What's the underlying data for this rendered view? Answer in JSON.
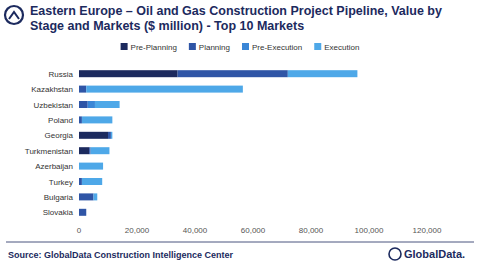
{
  "chart_data": {
    "type": "bar",
    "orientation": "horizontal",
    "stacked": true,
    "grid": false,
    "legend": "top",
    "title": "Eastern Europe – Oil and Gas Construction Project Pipeline, Value by Stage and Markets ($ million) - Top 10 Markets",
    "source": "Source: GlobalData Construction Intelligence Center",
    "brand": "GlobalData.",
    "categories": [
      "Russia",
      "Kazakhstan",
      "Uzbekistan",
      "Poland",
      "Georgia",
      "Turkmenistan",
      "Azerbaijan",
      "Turkey",
      "Bulgaria",
      "Slovakia"
    ],
    "series": [
      {
        "name": "Pre-Planning",
        "color": "#1c2a5e",
        "values": [
          34000,
          0,
          0,
          0,
          10000,
          3500,
          0,
          0,
          0,
          0
        ]
      },
      {
        "name": "Planning",
        "color": "#2f55a6",
        "values": [
          38000,
          2500,
          3000,
          1000,
          1000,
          500,
          0,
          1000,
          5000,
          2500
        ]
      },
      {
        "name": "Pre-Execution",
        "color": "#3a86d6",
        "values": [
          0,
          0,
          2500,
          0,
          0,
          0,
          0,
          0,
          0,
          0
        ]
      },
      {
        "name": "Execution",
        "color": "#4ea8e8",
        "values": [
          24000,
          54000,
          8500,
          10500,
          500,
          6500,
          8300,
          7000,
          1300,
          0
        ]
      }
    ],
    "xlim": [
      0,
      120000
    ],
    "xticks": [
      0,
      {
        "value": 20000,
        "label": "20,000"
      },
      {
        "value": 40000,
        "label": "40,000"
      },
      {
        "value": 60000,
        "label": "60,000"
      },
      {
        "value": 80000,
        "label": "80,000"
      },
      {
        "value": 100000,
        "label": "100,000"
      },
      {
        "value": 120000,
        "label": "120,000"
      }
    ]
  }
}
